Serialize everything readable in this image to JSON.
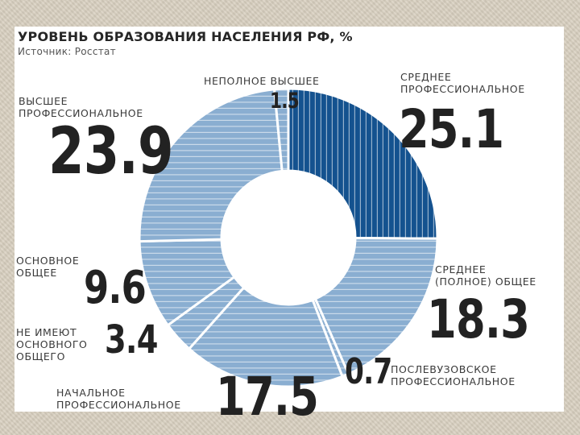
{
  "header": {
    "title": "УРОВЕНЬ ОБРАЗОВАНИЯ НАСЕЛЕНИЯ РФ, %",
    "source": "Источник: Росстат"
  },
  "colors": {
    "dark_blue": "#14528f",
    "light_blue": "#8aaed1",
    "stripe": "#ffffff",
    "text": "#222222"
  },
  "chart_data": {
    "type": "pie",
    "title": "УРОВЕНЬ ОБРАЗОВАНИЯ НАСЕЛЕНИЯ РФ, %",
    "subtitle": "Источник: Росстат",
    "slices": [
      {
        "label_lines": [
          "СРЕДНЕЕ",
          "ПРОФЕССИОНАЛЬНОЕ"
        ],
        "value": 25.1,
        "value_text": "25.1",
        "color": "#14528f",
        "stripe": "vertical"
      },
      {
        "label_lines": [
          "СРЕДНЕЕ",
          "(ПОЛНОЕ) ОБЩЕЕ"
        ],
        "value": 18.3,
        "value_text": "18.3",
        "color": "#8aaed1",
        "stripe": "horizontal"
      },
      {
        "label_lines": [
          "ПОСЛЕВУЗОВСКОЕ",
          "ПРОФЕССИОНАЛЬНОЕ"
        ],
        "value": 0.7,
        "value_text": "0.7",
        "color": "#8aaed1",
        "stripe": "horizontal"
      },
      {
        "label_lines": [
          "НАЧАЛЬНОЕ",
          "ПРОФЕССИОНАЛЬНОЕ"
        ],
        "value": 17.5,
        "value_text": "17.5",
        "color": "#8aaed1",
        "stripe": "horizontal"
      },
      {
        "label_lines": [
          "НЕ ИМЕЮТ",
          "ОСНОВНОГО",
          "ОБЩЕГО"
        ],
        "value": 3.4,
        "value_text": "3.4",
        "color": "#8aaed1",
        "stripe": "horizontal"
      },
      {
        "label_lines": [
          "ОСНОВНОЕ",
          "ОБЩЕЕ"
        ],
        "value": 9.6,
        "value_text": "9.6",
        "color": "#8aaed1",
        "stripe": "horizontal"
      },
      {
        "label_lines": [
          "ВЫСШЕЕ",
          "ПРОФЕССИОНАЛЬНОЕ"
        ],
        "value": 23.9,
        "value_text": "23.9",
        "color": "#8aaed1",
        "stripe": "horizontal"
      },
      {
        "label_lines": [
          "НЕПОЛНОЕ ВЫСШЕЕ"
        ],
        "value": 1.5,
        "value_text": "1.5",
        "color": "#8aaed1",
        "stripe": "horizontal"
      }
    ]
  }
}
